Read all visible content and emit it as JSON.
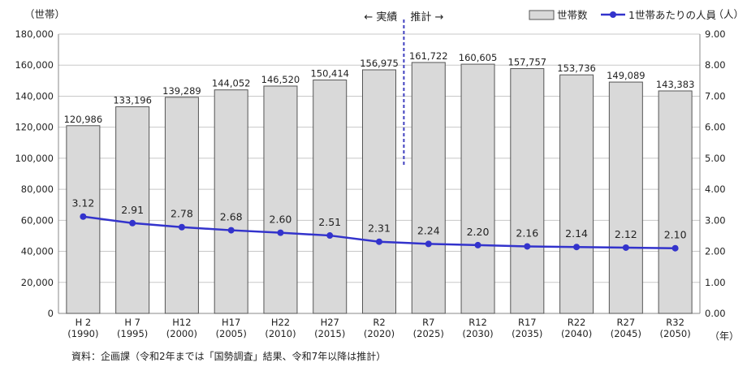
{
  "chart_data": {
    "type": "bar",
    "left_axis_unit": "（世帯）",
    "right_axis_unit": "（人）",
    "x_axis_unit": "（年）",
    "categories": [
      {
        "era": "H 2",
        "year": "(1990)"
      },
      {
        "era": "H 7",
        "year": "(1995)"
      },
      {
        "era": "H12",
        "year": "(2000)"
      },
      {
        "era": "H17",
        "year": "(2005)"
      },
      {
        "era": "H22",
        "year": "(2010)"
      },
      {
        "era": "H27",
        "year": "(2015)"
      },
      {
        "era": "R2",
        "year": "(2020)"
      },
      {
        "era": "R7",
        "year": "(2025)"
      },
      {
        "era": "R12",
        "year": "(2030)"
      },
      {
        "era": "R17",
        "year": "(2035)"
      },
      {
        "era": "R22",
        "year": "(2040)"
      },
      {
        "era": "R27",
        "year": "(2045)"
      },
      {
        "era": "R32",
        "year": "(2050)"
      }
    ],
    "series": [
      {
        "name": "世帯数",
        "kind": "bar",
        "axis": "left",
        "values": [
          120986,
          133196,
          139289,
          144052,
          146520,
          150414,
          156975,
          161722,
          160605,
          157757,
          153736,
          149089,
          143383
        ],
        "labels": [
          "120,986",
          "133,196",
          "139,289",
          "144,052",
          "146,520",
          "150,414",
          "156,975",
          "161,722",
          "160,605",
          "157,757",
          "153,736",
          "149,089",
          "143,383"
        ]
      },
      {
        "name": "1世帯あたりの人員",
        "kind": "line",
        "axis": "right",
        "values": [
          3.12,
          2.91,
          2.78,
          2.68,
          2.6,
          2.51,
          2.31,
          2.24,
          2.2,
          2.16,
          2.14,
          2.12,
          2.1
        ],
        "labels": [
          "3.12",
          "2.91",
          "2.78",
          "2.68",
          "2.60",
          "2.51",
          "2.31",
          "2.24",
          "2.20",
          "2.16",
          "2.14",
          "2.12",
          "2.10"
        ]
      }
    ],
    "left_axis": {
      "min": 0,
      "max": 180000,
      "ticks": [
        "0",
        "20,000",
        "40,000",
        "60,000",
        "80,000",
        "100,000",
        "120,000",
        "140,000",
        "160,000",
        "180,000"
      ]
    },
    "right_axis": {
      "min": 0,
      "max": 9,
      "ticks": [
        "0.00",
        "1.00",
        "2.00",
        "3.00",
        "4.00",
        "5.00",
        "6.00",
        "7.00",
        "8.00",
        "9.00"
      ]
    },
    "divider": {
      "after_category": "R2",
      "actual_label": "← 実績",
      "forecast_label": "推計 →"
    },
    "legend_position": "top-right",
    "grid": true,
    "colors": {
      "bar_fill": "#d9d9d9",
      "bar_stroke": "#555555",
      "line": "#3333cc",
      "divider": "#4040c0",
      "grid": "#c8c8c8"
    }
  },
  "source_note": "資料：企画課（令和2年までは「国勢調査」結果、令和7年以降は推計）"
}
